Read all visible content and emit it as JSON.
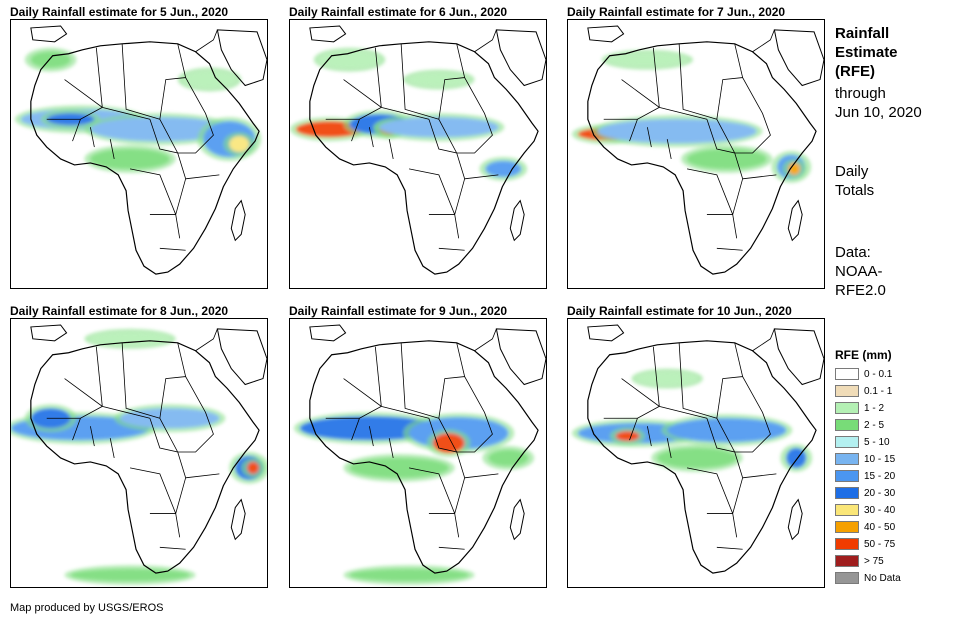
{
  "panels": [
    {
      "title": "Daily Rainfall estimate for 5 Jun., 2020"
    },
    {
      "title": "Daily Rainfall estimate for 6 Jun., 2020"
    },
    {
      "title": "Daily Rainfall estimate for 7 Jun., 2020"
    },
    {
      "title": "Daily Rainfall estimate for 8 Jun., 2020"
    },
    {
      "title": "Daily Rainfall estimate for 9 Jun., 2020"
    },
    {
      "title": "Daily Rainfall estimate for 10 Jun., 2020"
    }
  ],
  "side": {
    "title_lines": [
      "Rainfall",
      "Estimate",
      "(RFE)"
    ],
    "through": "through",
    "date": "Jun 10, 2020",
    "daily": "Daily",
    "totals": "Totals",
    "data_label": "Data:",
    "data_source_1": "NOAA-",
    "data_source_2": "RFE2.0"
  },
  "legend": {
    "title": "RFE (mm)",
    "items": [
      {
        "label": "0 - 0.1",
        "color": "#ffffff"
      },
      {
        "label": "0.1 - 1",
        "color": "#f0dcb8"
      },
      {
        "label": "1 - 2",
        "color": "#b4f0b4"
      },
      {
        "label": "2 - 5",
        "color": "#78dc78"
      },
      {
        "label": "5 - 10",
        "color": "#b4f0f0"
      },
      {
        "label": "10 - 15",
        "color": "#78b4f0"
      },
      {
        "label": "15 - 20",
        "color": "#4b96f0"
      },
      {
        "label": "20 - 30",
        "color": "#1e6ee6"
      },
      {
        "label": "30 - 40",
        "color": "#fae678"
      },
      {
        "label": "40 - 50",
        "color": "#f5a000"
      },
      {
        "label": "50 - 75",
        "color": "#f03c00"
      },
      {
        "label": "> 75",
        "color": "#a01e1e"
      },
      {
        "label": "No Data",
        "color": "#969696"
      }
    ]
  },
  "credit": "Map produced by USGS/EROS"
}
